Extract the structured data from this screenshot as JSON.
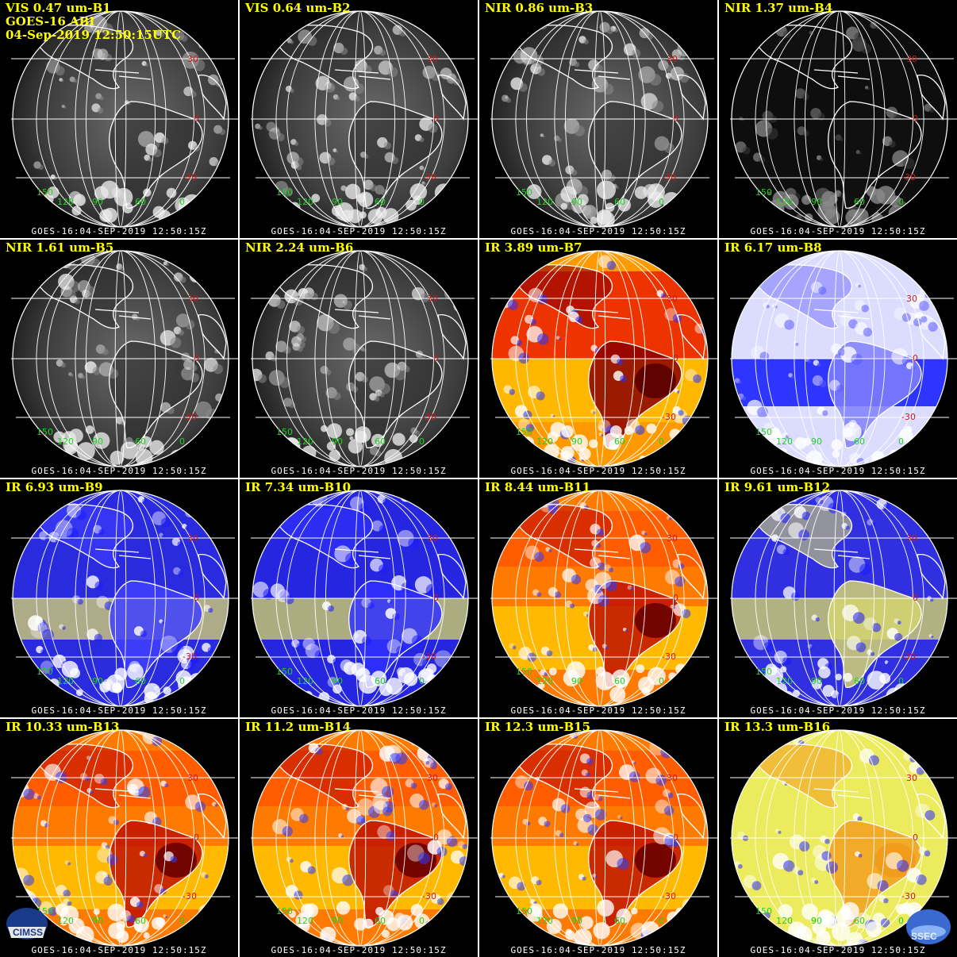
{
  "header": {
    "line2": "GOES-16 ABI",
    "line3": "04-Sep-2019 12:50:15UTC"
  },
  "panels": [
    {
      "band": "VIS 0.47 um-B1",
      "style": "vis",
      "brightness": 0.95
    },
    {
      "band": "VIS 0.64 um-B2",
      "style": "vis",
      "brightness": 0.85
    },
    {
      "band": "NIR 0.86 um-B3",
      "style": "vis",
      "brightness": 0.75
    },
    {
      "band": "NIR 1.37 um-B4",
      "style": "nir137",
      "brightness": 0.35
    },
    {
      "band": "NIR 1.61 um-B5",
      "style": "vis",
      "brightness": 0.7
    },
    {
      "band": "NIR 2.24 um-B6",
      "style": "vis",
      "brightness": 0.65
    },
    {
      "band": "IR 3.89 um-B7",
      "style": "ir-hot"
    },
    {
      "band": "IR 6.17 um-B8",
      "style": "wv-pale"
    },
    {
      "band": "IR 6.93 um-B9",
      "style": "wv-blue"
    },
    {
      "band": "IR 7.34 um-B10",
      "style": "wv-olive"
    },
    {
      "band": "IR 8.44 um-B11",
      "style": "ir-warm"
    },
    {
      "band": "IR 9.61 um-B12",
      "style": "ozone"
    },
    {
      "band": "IR 10.33 um-B13",
      "style": "ir-warm"
    },
    {
      "band": "IR 11.2 um-B14",
      "style": "ir-warm"
    },
    {
      "band": "IR 12.3 um-B15",
      "style": "ir-warm"
    },
    {
      "band": "IR 13.3 um-B16",
      "style": "co2"
    }
  ],
  "timestamp": "GOES-16:04-SEP-2019 12:50:15Z",
  "lat_labels": [
    "30",
    "0",
    "-30"
  ],
  "lon_labels": [
    "150",
    "120",
    "90",
    "60",
    "0"
  ],
  "logos": {
    "left": "CIMSS",
    "right": "SSEC"
  },
  "colors": {
    "title": "#ffff00",
    "lat_label": "#d01818",
    "lon_label": "#22d022",
    "grid": "#ffffff"
  }
}
